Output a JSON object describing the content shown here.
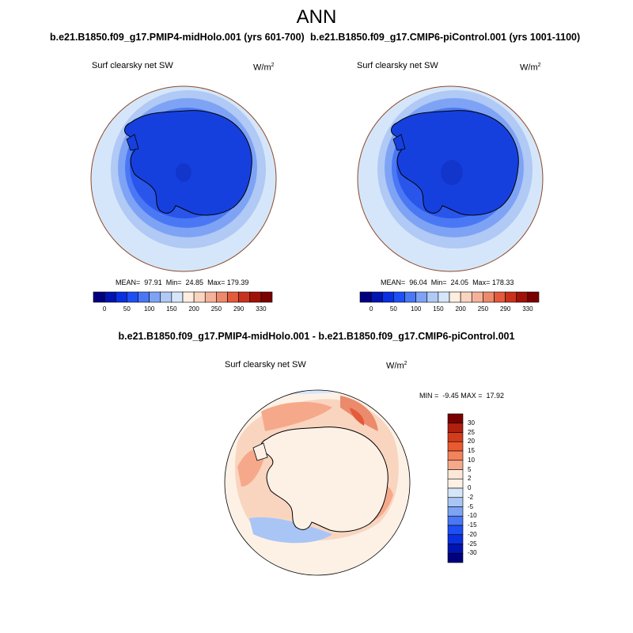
{
  "header": {
    "title": "ANN"
  },
  "panels": [
    {
      "case_title": "b.e21.B1850.f09_g17.PMIP4-midHolo.001 (yrs 601-700)",
      "variable": "Surf clearsky net SW",
      "units_base": "W/m",
      "units_exp": "2",
      "stats": "MEAN=  97.91  Min=  24.85  Max= 179.39"
    },
    {
      "case_title": "b.e21.B1850.f09_g17.CMIP6-piControl.001 (yrs 1001-1100)",
      "variable": "Surf clearsky net SW",
      "units_base": "W/m",
      "units_exp": "2",
      "stats": "MEAN=  96.04  Min=  24.05  Max= 178.33"
    },
    {
      "case_title": "b.e21.B1850.f09_g17.PMIP4-midHolo.001 - b.e21.B1850.f09_g17.CMIP6-piControl.001",
      "variable": "Surf clearsky net SW",
      "units_base": "W/m",
      "units_exp": "2",
      "stats": "MIN =  -9.45 MAX =  17.92"
    }
  ],
  "colorbar_top": {
    "labels": [
      "0",
      "50",
      "100",
      "150",
      "200",
      "250",
      "290",
      "330"
    ],
    "colors": [
      "#00007f",
      "#0014b0",
      "#0a2fe0",
      "#1e4ff5",
      "#4a78f5",
      "#7ea3f5",
      "#b0c9f5",
      "#d6e6fa",
      "#fdeee0",
      "#f9d5c0",
      "#f4b29a",
      "#ec8a6c",
      "#e45a3c",
      "#c8321d",
      "#a01208",
      "#7a0000"
    ]
  },
  "colorbar_diff": {
    "labels": [
      "30",
      "25",
      "20",
      "15",
      "10",
      "5",
      "2",
      "0",
      "-2",
      "-5",
      "-10",
      "-15",
      "-20",
      "-25",
      "-30"
    ],
    "colors": [
      "#7a0000",
      "#b0200e",
      "#d23c1c",
      "#ea5a30",
      "#f2835c",
      "#f6a98a",
      "#fbe8d8",
      "#fdf1e6",
      "#d6e6fa",
      "#a9c5f5",
      "#7ea3f5",
      "#4a78f5",
      "#1e4ff5",
      "#0a2fe0",
      "#0014b0",
      "#00007f"
    ]
  },
  "map_colors": {
    "ant_interior": "#1640dd",
    "ant_dark": "#1236cc",
    "ocean_inner": "#2a55ea",
    "ocean_mid": "#4a78f5",
    "ocean_light": "#7ea3f5",
    "ocean_pale": "#b0c9f5",
    "ocean_outer": "#d6e6fa",
    "diff_base": "#fdf1e6",
    "diff_pos1": "#f9d5c0",
    "diff_pos2": "#f6a98a",
    "diff_pos3": "#ec8a6c",
    "diff_pos4": "#e45a3c",
    "diff_neg1": "#d6e6fa",
    "diff_neg2": "#a9c5f5"
  }
}
